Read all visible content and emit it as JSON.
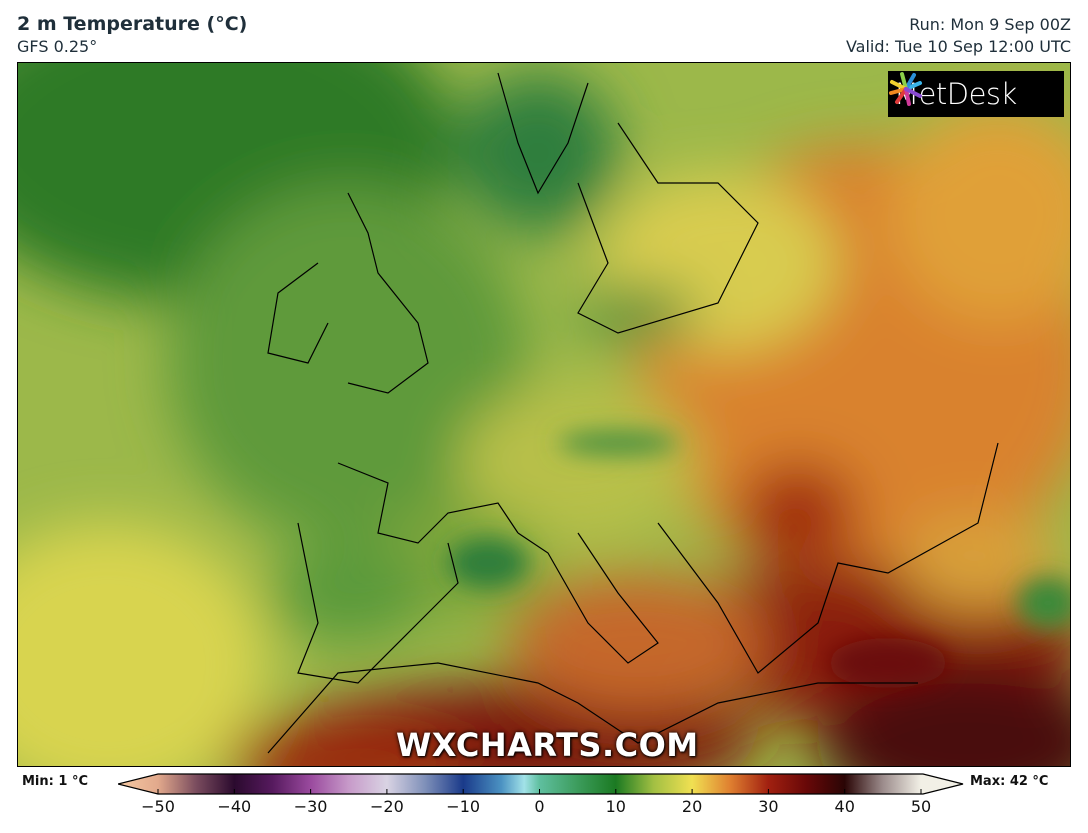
{
  "header": {
    "title": "2 m Temperature (°C)",
    "model": "GFS 0.25°",
    "run": "Run: Mon 9 Sep 00Z",
    "valid": "Valid: Tue 10 Sep 12:00 UTC"
  },
  "logo": {
    "text": "MetDesk"
  },
  "watermark": "WXCHARTS.COM",
  "colorbar": {
    "min_label": "Min: 1 °C",
    "max_label": "Max: 42 °C",
    "ticks": [
      "−50",
      "−40",
      "−30",
      "−20",
      "−10",
      "0",
      "10",
      "20",
      "30",
      "40",
      "50"
    ],
    "colors": {
      "-55": "#f5c8a2",
      "-50": "#e2a98c",
      "-45": "#7a4c5e",
      "-40": "#2b0a2e",
      "-35": "#561a5e",
      "-30": "#9a4a9e",
      "-25": "#c79ac9",
      "-20": "#d9d3e3",
      "-15": "#7f90b9",
      "-10": "#1a3a8a",
      "-5": "#4b92c2",
      "-2": "#a2e2e8",
      "0": "#5fbf9f",
      "5": "#3c9c5c",
      "10": "#1b7a22",
      "15": "#a3c043",
      "20": "#f0e052",
      "25": "#df7f30",
      "30": "#a12010",
      "35": "#680808",
      "40": "#2a0505",
      "45": "#9c8c8c",
      "50": "#f2f0e6"
    }
  }
}
